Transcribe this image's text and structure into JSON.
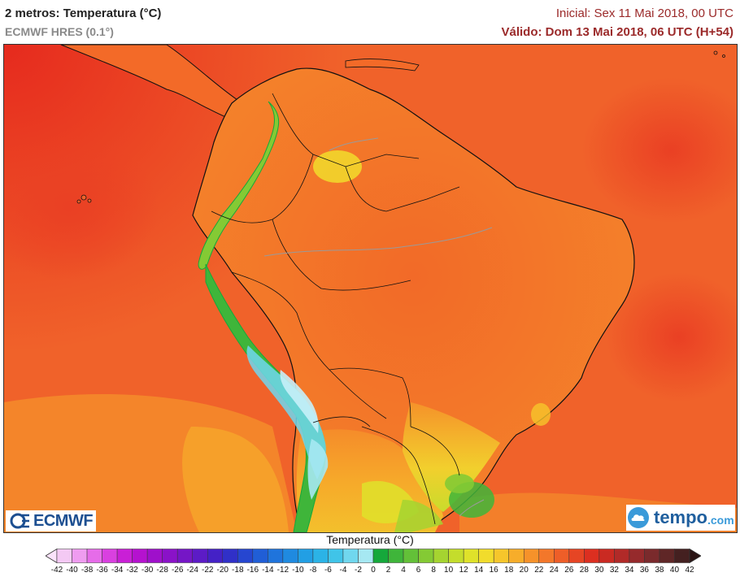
{
  "header": {
    "title": "2 metros: Temperatura (°C)",
    "model": "ECMWF HRES (0.1°)",
    "initial": "Inicial: Sex 11 Mai 2018, 00 UTC",
    "valid": "Válido: Dom 13 Mai 2018, 06 UTC (H+54)"
  },
  "logos": {
    "ecmwf": "ECMWF",
    "tempo_main": "tempo",
    "tempo_suffix": ".com"
  },
  "legend": {
    "title": "Temperatura (°C)",
    "ticks": [
      "-42",
      "-40",
      "-38",
      "-36",
      "-34",
      "-32",
      "-30",
      "-28",
      "-26",
      "-24",
      "-22",
      "-20",
      "-18",
      "-16",
      "-14",
      "-12",
      "-10",
      "-8",
      "-6",
      "-4",
      "-2",
      "0",
      "2",
      "4",
      "6",
      "8",
      "10",
      "12",
      "14",
      "16",
      "18",
      "20",
      "22",
      "24",
      "26",
      "28",
      "30",
      "32",
      "34",
      "36",
      "38",
      "40",
      "42"
    ],
    "colors": [
      "#f4c9f4",
      "#ef9cf0",
      "#e66ce9",
      "#d940e0",
      "#c91fd6",
      "#b512cf",
      "#9f10cb",
      "#8a12c8",
      "#7516c6",
      "#5c1bc6",
      "#4421c6",
      "#3030c8",
      "#2646d0",
      "#205ed6",
      "#1f74dc",
      "#1f8ae0",
      "#229fe4",
      "#2bb3e6",
      "#40c4e8",
      "#70d7ee",
      "#a6e8f2",
      "#15a83b",
      "#3fb53a",
      "#63c038",
      "#84ca34",
      "#a5d430",
      "#c4dd2c",
      "#dfe22a",
      "#f1dc2c",
      "#f6c62b",
      "#f7ad2a",
      "#f6922a",
      "#f3772a",
      "#ee5e28",
      "#e64524",
      "#dc2f20",
      "#ca2a22",
      "#b12a28",
      "#962a2c",
      "#7a2a2c",
      "#5f2626",
      "#442020"
    ],
    "low_color": "#fbe3fb",
    "high_color": "#2a1414"
  }
}
